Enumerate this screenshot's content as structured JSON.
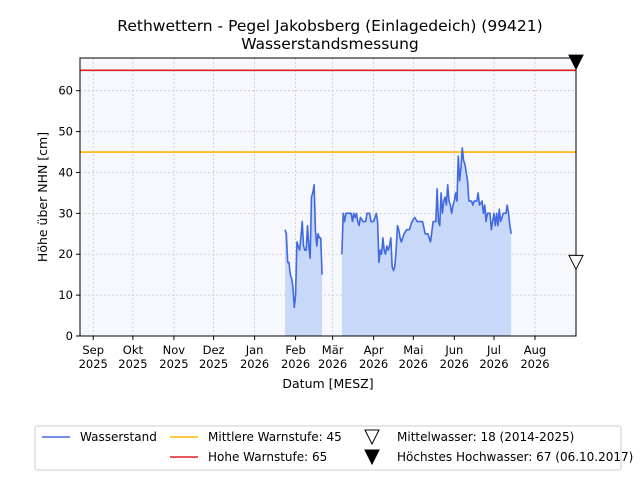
{
  "chart_data": {
    "type": "line",
    "title": "Rethwettern - Pegel Jakobsberg (Einlagedeich) (99421)",
    "subtitle": "Wasserstandsmessung",
    "xlabel": "Datum [MESZ]",
    "ylabel": "Höhe über NHN [cm]",
    "ylim": [
      0,
      68
    ],
    "xlim": [
      "2025-08-22",
      "2026-09-01"
    ],
    "grid": true,
    "legend_position": "bottom",
    "y_ticks": [
      0,
      10,
      20,
      30,
      40,
      50,
      60
    ],
    "x_ticks": [
      {
        "date": "2025-09-01",
        "label": [
          "Sep",
          "2025"
        ]
      },
      {
        "date": "2025-10-01",
        "label": [
          "Okt",
          "2025"
        ]
      },
      {
        "date": "2025-11-01",
        "label": [
          "Nov",
          "2025"
        ]
      },
      {
        "date": "2025-12-01",
        "label": [
          "Dez",
          "2025"
        ]
      },
      {
        "date": "2026-01-01",
        "label": [
          "Jan",
          "2026"
        ]
      },
      {
        "date": "2026-02-01",
        "label": [
          "Feb",
          "2026"
        ]
      },
      {
        "date": "2026-03-01",
        "label": [
          "Mär",
          "2026"
        ]
      },
      {
        "date": "2026-04-01",
        "label": [
          "Apr",
          "2026"
        ]
      },
      {
        "date": "2026-05-01",
        "label": [
          "Mai",
          "2026"
        ]
      },
      {
        "date": "2026-06-01",
        "label": [
          "Jun",
          "2026"
        ]
      },
      {
        "date": "2026-07-01",
        "label": [
          "Jul",
          "2026"
        ]
      },
      {
        "date": "2026-08-01",
        "label": [
          "Aug",
          "2026"
        ]
      }
    ],
    "series": [
      {
        "name": "Wasserstand",
        "color": "#4169e1",
        "fill": "#c8d8f8",
        "segments": [
          [
            [
              "2026-01-24",
              26
            ],
            [
              "2026-01-25",
              25
            ],
            [
              "2026-01-26",
              18
            ],
            [
              "2026-01-27",
              18
            ],
            [
              "2026-01-28",
              15
            ],
            [
              "2026-01-29",
              14
            ],
            [
              "2026-01-30",
              12
            ],
            [
              "2026-01-31",
              7
            ],
            [
              "2026-02-01",
              10
            ],
            [
              "2026-02-02",
              23
            ],
            [
              "2026-02-03",
              22
            ],
            [
              "2026-02-04",
              21
            ],
            [
              "2026-02-05",
              24
            ],
            [
              "2026-02-06",
              28
            ],
            [
              "2026-02-07",
              22
            ],
            [
              "2026-02-08",
              21
            ],
            [
              "2026-02-09",
              21
            ],
            [
              "2026-02-10",
              27
            ],
            [
              "2026-02-11",
              22
            ],
            [
              "2026-02-12",
              19
            ],
            [
              "2026-02-13",
              34
            ],
            [
              "2026-02-14",
              35
            ],
            [
              "2026-02-15",
              37
            ],
            [
              "2026-02-16",
              26
            ],
            [
              "2026-02-17",
              22
            ],
            [
              "2026-02-18",
              25
            ],
            [
              "2026-02-19",
              24
            ],
            [
              "2026-02-20",
              24
            ],
            [
              "2026-02-21",
              15
            ]
          ],
          [
            [
              "2026-03-08",
              20
            ],
            [
              "2026-03-09",
              30
            ],
            [
              "2026-03-10",
              28
            ],
            [
              "2026-03-11",
              30
            ],
            [
              "2026-03-13",
              30
            ],
            [
              "2026-03-15",
              30
            ],
            [
              "2026-03-16",
              28
            ],
            [
              "2026-03-17",
              30
            ],
            [
              "2026-03-18",
              29
            ],
            [
              "2026-03-19",
              30
            ],
            [
              "2026-03-20",
              28
            ],
            [
              "2026-03-21",
              27
            ],
            [
              "2026-03-22",
              29
            ],
            [
              "2026-03-24",
              28
            ],
            [
              "2026-03-26",
              28
            ],
            [
              "2026-03-27",
              30
            ],
            [
              "2026-03-29",
              30
            ],
            [
              "2026-03-30",
              28
            ],
            [
              "2026-04-01",
              28
            ],
            [
              "2026-04-03",
              30
            ],
            [
              "2026-04-04",
              28
            ],
            [
              "2026-04-05",
              18
            ],
            [
              "2026-04-06",
              21
            ],
            [
              "2026-04-07",
              20
            ],
            [
              "2026-04-08",
              24
            ],
            [
              "2026-04-09",
              21
            ],
            [
              "2026-04-10",
              20
            ],
            [
              "2026-04-11",
              22
            ],
            [
              "2026-04-12",
              21
            ],
            [
              "2026-04-13",
              22
            ],
            [
              "2026-04-14",
              24
            ],
            [
              "2026-04-15",
              17
            ],
            [
              "2026-04-16",
              16
            ],
            [
              "2026-04-17",
              17
            ],
            [
              "2026-04-18",
              21
            ],
            [
              "2026-04-19",
              27
            ],
            [
              "2026-04-20",
              26
            ],
            [
              "2026-04-21",
              24
            ],
            [
              "2026-04-22",
              23
            ],
            [
              "2026-04-24",
              25
            ],
            [
              "2026-04-26",
              26
            ],
            [
              "2026-04-28",
              26
            ],
            [
              "2026-04-30",
              28
            ],
            [
              "2026-05-02",
              29
            ],
            [
              "2026-05-04",
              28
            ],
            [
              "2026-05-06",
              28
            ],
            [
              "2026-05-08",
              28
            ],
            [
              "2026-05-10",
              25
            ],
            [
              "2026-05-12",
              25
            ],
            [
              "2026-05-13",
              24
            ],
            [
              "2026-05-14",
              23
            ],
            [
              "2026-05-16",
              28
            ],
            [
              "2026-05-18",
              28
            ],
            [
              "2026-05-19",
              36
            ],
            [
              "2026-05-20",
              28
            ],
            [
              "2026-05-21",
              27
            ],
            [
              "2026-05-22",
              35
            ],
            [
              "2026-05-23",
              30
            ],
            [
              "2026-05-24",
              33
            ],
            [
              "2026-05-25",
              34
            ],
            [
              "2026-05-26",
              32
            ],
            [
              "2026-05-27",
              37
            ],
            [
              "2026-05-28",
              33
            ],
            [
              "2026-05-29",
              32
            ],
            [
              "2026-05-30",
              30
            ],
            [
              "2026-05-31",
              32
            ],
            [
              "2026-06-01",
              33
            ],
            [
              "2026-06-02",
              35
            ],
            [
              "2026-06-03",
              33
            ],
            [
              "2026-06-04",
              44
            ],
            [
              "2026-06-05",
              38
            ],
            [
              "2026-06-06",
              41
            ],
            [
              "2026-06-07",
              46
            ],
            [
              "2026-06-08",
              43
            ],
            [
              "2026-06-09",
              42
            ],
            [
              "2026-06-10",
              40
            ],
            [
              "2026-06-11",
              38
            ],
            [
              "2026-06-12",
              33
            ],
            [
              "2026-06-14",
              33
            ],
            [
              "2026-06-15",
              32
            ],
            [
              "2026-06-16",
              33
            ],
            [
              "2026-06-18",
              33
            ],
            [
              "2026-06-19",
              35
            ],
            [
              "2026-06-20",
              32
            ],
            [
              "2026-06-22",
              33
            ],
            [
              "2026-06-23",
              30
            ],
            [
              "2026-06-24",
              32
            ],
            [
              "2026-06-25",
              28
            ],
            [
              "2026-06-26",
              30
            ],
            [
              "2026-06-28",
              30
            ],
            [
              "2026-06-29",
              26
            ],
            [
              "2026-06-30",
              28
            ],
            [
              "2026-07-01",
              30
            ],
            [
              "2026-07-02",
              27
            ],
            [
              "2026-07-03",
              30
            ],
            [
              "2026-07-04",
              27
            ],
            [
              "2026-07-05",
              31
            ],
            [
              "2026-07-06",
              28
            ],
            [
              "2026-07-08",
              30
            ],
            [
              "2026-07-10",
              30
            ],
            [
              "2026-07-11",
              32
            ],
            [
              "2026-07-12",
              30
            ],
            [
              "2026-07-13",
              27
            ],
            [
              "2026-07-14",
              25
            ]
          ]
        ]
      }
    ],
    "reference_lines": [
      {
        "name": "Mittlere Warnstufe: 45",
        "value": 45,
        "color": "#ffb400"
      },
      {
        "name": "Hohe Warnstufe: 65",
        "value": 65,
        "color": "#e02020"
      }
    ],
    "markers": [
      {
        "name": "Mittelwasser: 18 (2014-2025)",
        "value": 18,
        "style": "open-triangle-down"
      },
      {
        "name": "Höchstes Hochwasser: 67 (06.10.2017)",
        "value": 67,
        "style": "filled-triangle-down"
      }
    ]
  }
}
